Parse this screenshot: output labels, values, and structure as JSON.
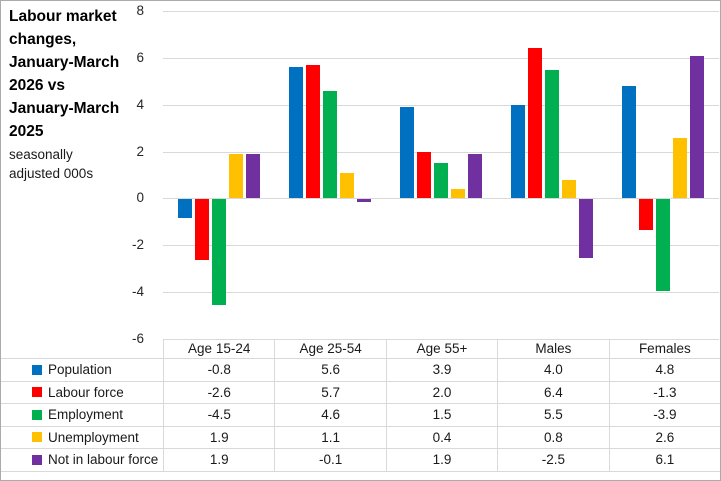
{
  "title": {
    "main": "Labour market changes, January-March 2026 vs January-March 2025",
    "sub": "seasonally adjusted 000s"
  },
  "chart_data": {
    "type": "bar",
    "title": "Labour market changes, January-March 2026 vs January-March 2025",
    "subtitle": "seasonally adjusted 000s",
    "categories": [
      "Age 15-24",
      "Age 25-54",
      "Age 55+",
      "Males",
      "Females"
    ],
    "series": [
      {
        "name": "Population",
        "color": "#0070C0",
        "values": [
          -0.8,
          5.6,
          3.9,
          4.0,
          4.8
        ]
      },
      {
        "name": "Labour force",
        "color": "#FF0000",
        "values": [
          -2.6,
          5.7,
          2.0,
          6.4,
          -1.3
        ]
      },
      {
        "name": "Employment",
        "color": "#00B050",
        "values": [
          -4.5,
          4.6,
          1.5,
          5.5,
          -3.9
        ]
      },
      {
        "name": "Unemployment",
        "color": "#FFC000",
        "values": [
          1.9,
          1.1,
          0.4,
          0.8,
          2.6
        ]
      },
      {
        "name": "Not in labour force",
        "color": "#7030A0",
        "values": [
          1.9,
          -0.1,
          1.9,
          -2.5,
          6.1
        ]
      }
    ],
    "ylim": [
      -6,
      8
    ],
    "yticks": [
      8,
      6,
      4,
      2,
      0,
      -2,
      -4,
      -6
    ],
    "grid": true,
    "gridline_color": "#d9d9d9",
    "value_decimals": 1,
    "legend_position": "data-table-left"
  }
}
